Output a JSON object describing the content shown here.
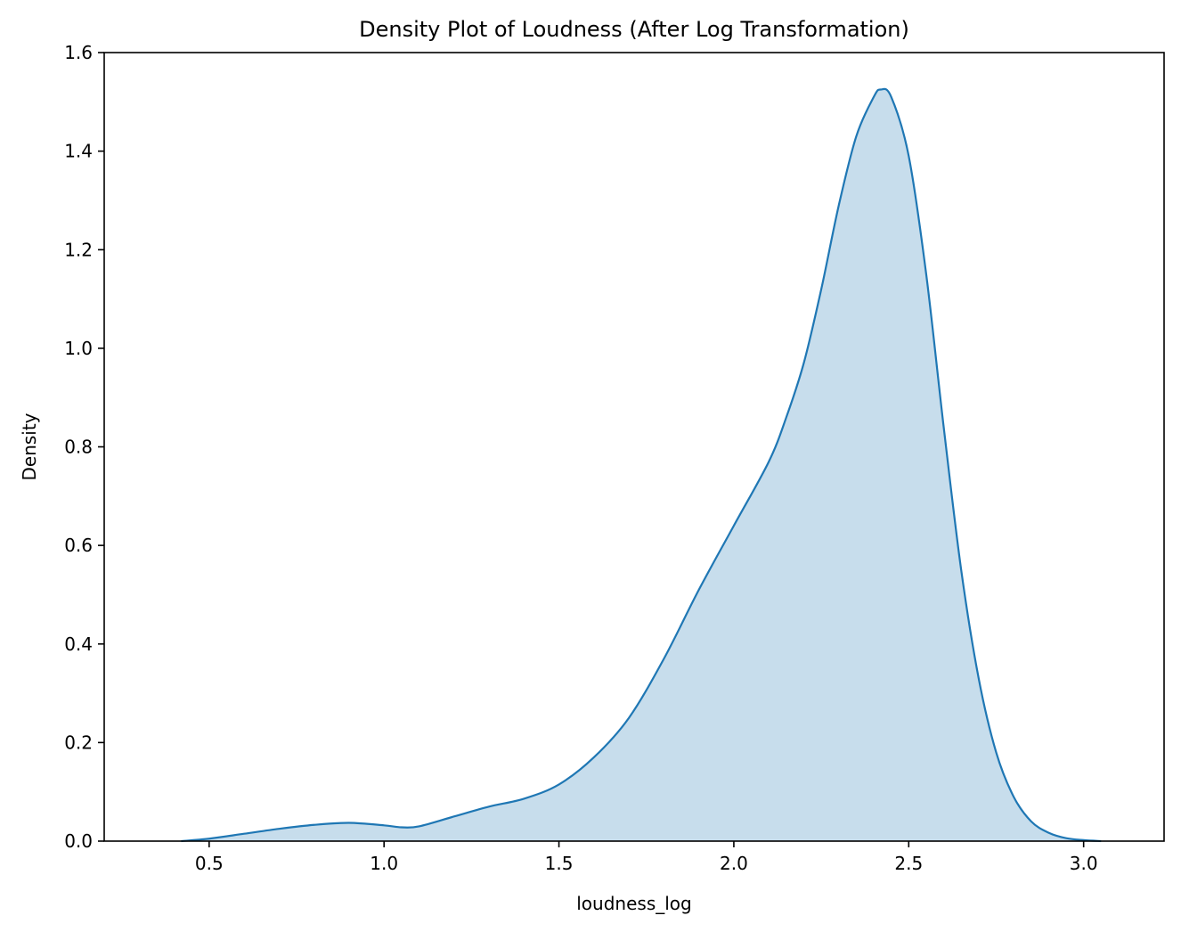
{
  "chart_data": {
    "type": "area",
    "title": "Density Plot of Loudness (After Log Transformation)",
    "xlabel": "loudness_log",
    "ylabel": "Density",
    "xlim": [
      0.2,
      3.23
    ],
    "ylim": [
      0,
      1.6
    ],
    "xticks": [
      0.5,
      1.0,
      1.5,
      2.0,
      2.5,
      3.0
    ],
    "xtick_labels": [
      "0.5",
      "1.0",
      "1.5",
      "2.0",
      "2.5",
      "3.0"
    ],
    "yticks": [
      0.0,
      0.2,
      0.4,
      0.6,
      0.8,
      1.0,
      1.2,
      1.4,
      1.6
    ],
    "ytick_labels": [
      "0.0",
      "0.2",
      "0.4",
      "0.6",
      "0.8",
      "1.0",
      "1.2",
      "1.4",
      "1.6"
    ],
    "grid": false,
    "line_color": "#1f77b4",
    "fill_color": "#1f77b4",
    "fill_opacity": 0.25,
    "series": [
      {
        "x": [
          0.42,
          0.5,
          0.6,
          0.7,
          0.8,
          0.9,
          1.0,
          1.05,
          1.1,
          1.2,
          1.3,
          1.4,
          1.5,
          1.6,
          1.7,
          1.8,
          1.9,
          2.0,
          2.1,
          2.15,
          2.2,
          2.25,
          2.3,
          2.35,
          2.4,
          2.42,
          2.45,
          2.5,
          2.55,
          2.6,
          2.65,
          2.7,
          2.75,
          2.8,
          2.85,
          2.9,
          2.95,
          3.0,
          3.05
        ],
        "y": [
          0.0,
          0.005,
          0.015,
          0.025,
          0.033,
          0.037,
          0.032,
          0.028,
          0.03,
          0.05,
          0.07,
          0.086,
          0.115,
          0.17,
          0.25,
          0.37,
          0.51,
          0.64,
          0.77,
          0.86,
          0.97,
          1.12,
          1.29,
          1.43,
          1.51,
          1.525,
          1.51,
          1.39,
          1.15,
          0.84,
          0.55,
          0.33,
          0.18,
          0.09,
          0.04,
          0.017,
          0.006,
          0.002,
          0.0
        ]
      }
    ]
  }
}
